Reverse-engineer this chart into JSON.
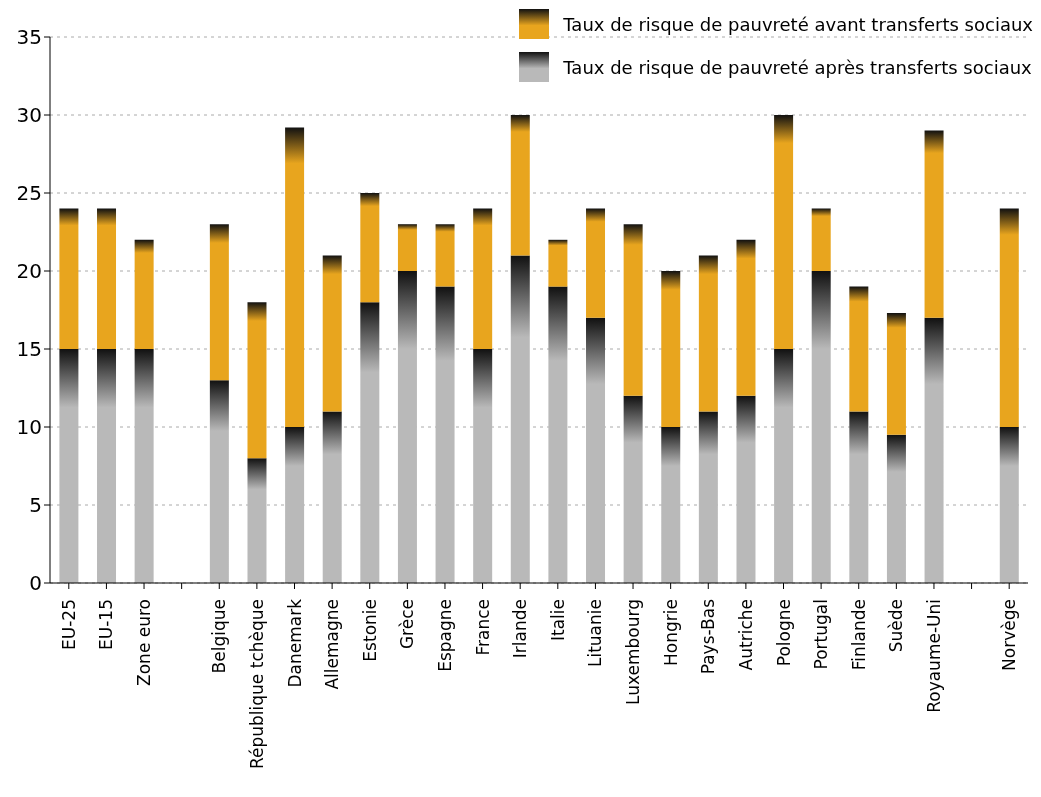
{
  "chart_data": {
    "type": "bar",
    "stacked": true,
    "categories": [
      "EU-25",
      "EU-15",
      "Zone euro",
      null,
      "Belgique",
      "République tchèque",
      "Danemark",
      "Allemagne",
      "Estonie",
      "Grèce",
      "Espagne",
      "France",
      "Irlande",
      "Italie",
      "Lituanie",
      "Luxembourg",
      "Hongrie",
      "Pays-Bas",
      "Autriche",
      "Pologne",
      "Portugal",
      "Finlande",
      "Suède",
      "Royaume-Uni",
      null,
      "Norvège"
    ],
    "series": [
      {
        "name": "Taux de risque de pauvreté après transferts sociaux",
        "color": "#b9b9b9",
        "values": [
          15,
          15,
          15,
          null,
          13,
          8,
          10,
          11,
          18,
          20,
          19,
          15,
          21,
          19,
          17,
          12,
          10,
          11,
          12,
          15,
          20,
          11,
          9.5,
          17,
          null,
          10
        ]
      },
      {
        "name": "Taux de risque de pauvreté avant transferts sociaux",
        "color": "#e8a51e",
        "values": [
          9,
          9,
          7,
          null,
          10,
          10,
          19.2,
          10,
          7,
          3,
          4,
          9,
          9,
          3,
          7,
          11,
          10,
          10,
          10,
          15,
          4,
          8,
          7.8,
          12,
          null,
          14
        ]
      }
    ],
    "ylim": [
      0,
      35
    ],
    "yticks": [
      0,
      5,
      10,
      15,
      20,
      25,
      30,
      35
    ],
    "grid": "y",
    "legend": "top right"
  }
}
